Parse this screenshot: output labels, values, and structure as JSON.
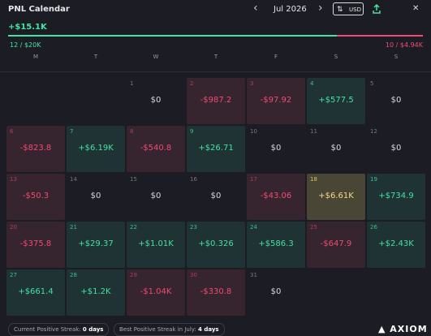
{
  "header": {
    "title": "PNL Calendar",
    "prev": "‹",
    "month": "Jul 2026",
    "next": "›",
    "currency": "USD",
    "close": "✕"
  },
  "summary": {
    "total": "+$15.1K",
    "wins": "12 / $20K",
    "losses": "10 / $4.94K"
  },
  "weekdays": [
    "M",
    "T",
    "W",
    "T",
    "F",
    "S",
    "S"
  ],
  "weeks": [
    [
      null,
      null,
      {
        "day": "1",
        "pnl": "$0",
        "status": "zero"
      },
      {
        "day": "2",
        "pnl": "-$987.2",
        "status": "negative"
      },
      {
        "day": "3",
        "pnl": "-$97.92",
        "status": "negative"
      },
      {
        "day": "4",
        "pnl": "+$577.5",
        "status": "positive"
      },
      {
        "day": "5",
        "pnl": "$0",
        "status": "zero"
      }
    ],
    [
      {
        "day": "6",
        "pnl": "-$823.8",
        "status": "negative"
      },
      {
        "day": "7",
        "pnl": "+$6.19K",
        "status": "positive"
      },
      {
        "day": "8",
        "pnl": "-$540.8",
        "status": "negative"
      },
      {
        "day": "9",
        "pnl": "+$26.71",
        "status": "positive"
      },
      {
        "day": "10",
        "pnl": "$0",
        "status": "zero"
      },
      {
        "day": "11",
        "pnl": "$0",
        "status": "zero"
      },
      {
        "day": "12",
        "pnl": "$0",
        "status": "zero"
      }
    ],
    [
      {
        "day": "13",
        "pnl": "-$50.3",
        "status": "negative"
      },
      {
        "day": "14",
        "pnl": "$0",
        "status": "zero"
      },
      {
        "day": "15",
        "pnl": "$0",
        "status": "zero"
      },
      {
        "day": "16",
        "pnl": "$0",
        "status": "zero"
      },
      {
        "day": "17",
        "pnl": "-$43.06",
        "status": "negative"
      },
      {
        "day": "18",
        "pnl": "+$6.61K",
        "status": "best"
      },
      {
        "day": "19",
        "pnl": "+$734.9",
        "status": "positive"
      }
    ],
    [
      {
        "day": "20",
        "pnl": "-$375.8",
        "status": "negative"
      },
      {
        "day": "21",
        "pnl": "+$29.37",
        "status": "positive"
      },
      {
        "day": "22",
        "pnl": "+$1.01K",
        "status": "positive"
      },
      {
        "day": "23",
        "pnl": "+$0.326",
        "status": "positive"
      },
      {
        "day": "24",
        "pnl": "+$586.3",
        "status": "positive"
      },
      {
        "day": "25",
        "pnl": "-$647.9",
        "status": "negative"
      },
      {
        "day": "26",
        "pnl": "+$2.43K",
        "status": "positive"
      }
    ],
    [
      {
        "day": "27",
        "pnl": "+$661.4",
        "status": "positive"
      },
      {
        "day": "28",
        "pnl": "+$1.2K",
        "status": "positive"
      },
      {
        "day": "29",
        "pnl": "-$1.04K",
        "status": "negative"
      },
      {
        "day": "30",
        "pnl": "-$330.8",
        "status": "negative"
      },
      {
        "day": "31",
        "pnl": "$0",
        "status": "zero"
      },
      null,
      null
    ]
  ],
  "footer": {
    "current_label": "Current Positive Streak:",
    "current_value": "0 days",
    "best_label": "Best Positive Streak in July:",
    "best_value": "4 days",
    "brand": "AXIOM"
  }
}
